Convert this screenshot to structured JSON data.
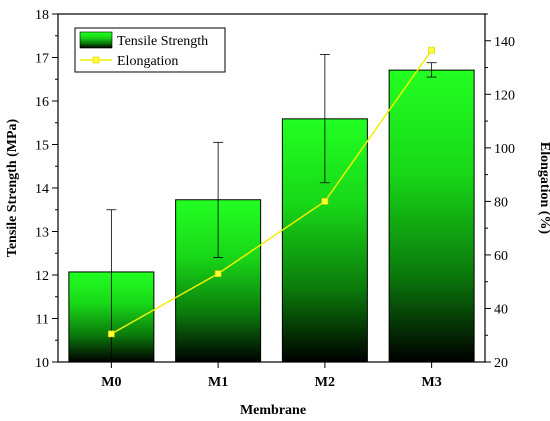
{
  "chart_data": {
    "type": "bar",
    "xlabel": "Membrane",
    "ylabel": "Tensile Strength (MPa)",
    "y2label": "Elongation (%)",
    "categories": [
      "M0",
      "M1",
      "M2",
      "M3"
    ],
    "ylim": [
      10,
      18
    ],
    "y2lim": [
      20,
      150
    ],
    "yticks": [
      "10",
      "11",
      "12",
      "13",
      "14",
      "15",
      "16",
      "17",
      "18"
    ],
    "y2ticks": [
      "20",
      "40",
      "60",
      "80",
      "100",
      "120",
      "140"
    ],
    "series": [
      {
        "name": "Tensile Strength",
        "type": "bar",
        "axis": "left",
        "values": [
          12.07,
          13.73,
          15.59,
          16.71
        ],
        "error_low": [
          10.0,
          12.4,
          14.12,
          16.55
        ],
        "error_high": [
          13.5,
          15.05,
          17.07,
          16.88
        ],
        "color": "#1ee61e"
      },
      {
        "name": "Elongation",
        "type": "line",
        "axis": "right",
        "values": [
          30.5,
          53.0,
          80.0,
          136.5
        ],
        "color": "#f0f000",
        "marker_color": "#ffff33"
      }
    ],
    "legend_position": "top-left"
  }
}
